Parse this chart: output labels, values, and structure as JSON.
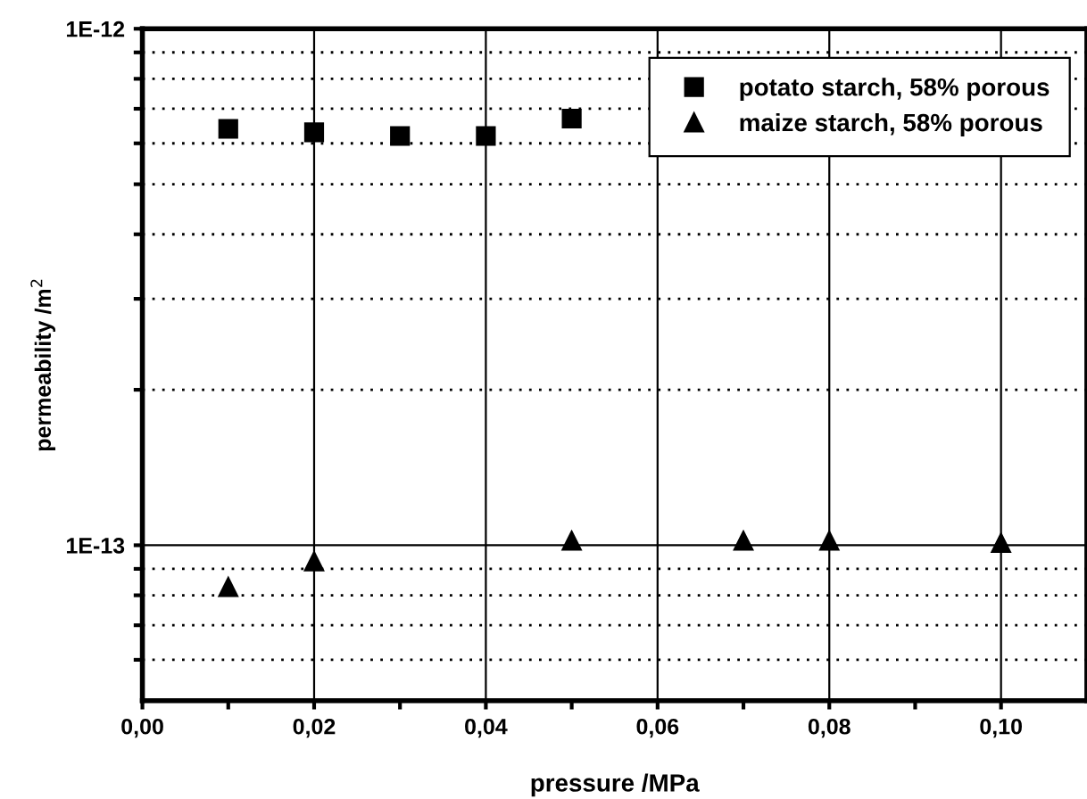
{
  "chart_data": {
    "type": "scatter",
    "xlabel": "pressure /MPa",
    "ylabel": "permeability /m$^{2}$",
    "log": "y",
    "xlim": [
      0,
      0.11
    ],
    "xticks": [
      {
        "value": 0,
        "label": "0,00"
      },
      {
        "value": 0.01,
        "label": null
      },
      {
        "value": 0.02,
        "label": "0,02"
      },
      {
        "value": 0.03,
        "label": null
      },
      {
        "value": 0.04,
        "label": "0,04"
      },
      {
        "value": 0.05,
        "label": null
      },
      {
        "value": 0.06,
        "label": "0,06"
      },
      {
        "value": 0.07,
        "label": null
      },
      {
        "value": 0.08,
        "label": "0,08"
      },
      {
        "value": 0.09,
        "label": null
      },
      {
        "value": 0.1,
        "label": "0,10"
      }
    ],
    "ylim": [
      5e-14,
      1e-12
    ],
    "yticks": [
      {
        "value": 6e-14,
        "label": null
      },
      {
        "value": 7e-14,
        "label": null
      },
      {
        "value": 8e-14,
        "label": null
      },
      {
        "value": 9e-14,
        "label": null
      },
      {
        "value": 1e-13,
        "label": "1E-13"
      },
      {
        "value": 2e-13,
        "label": null
      },
      {
        "value": 3e-13,
        "label": null
      },
      {
        "value": 4e-13,
        "label": null
      },
      {
        "value": 5e-13,
        "label": null
      },
      {
        "value": 6e-13,
        "label": null
      },
      {
        "value": 7e-13,
        "label": null
      },
      {
        "value": 8e-13,
        "label": null
      },
      {
        "value": 9e-13,
        "label": null
      },
      {
        "value": 1e-12,
        "label": "1E-12"
      }
    ],
    "grid": true,
    "legend": "top right",
    "series": [
      {
        "name": "potato starch, 58% porous",
        "color": "#000000",
        "marker": "square",
        "x": [
          0.01,
          0.02,
          0.03,
          0.04,
          0.05
        ],
        "values": [
          6.4e-13,
          6.3e-13,
          6.2e-13,
          6.2e-13,
          6.7e-13
        ]
      },
      {
        "name": "maize starch, 58% porous",
        "color": "#000000",
        "marker": "triangle",
        "x": [
          0.01,
          0.02,
          0.05,
          0.07,
          0.08,
          0.1
        ],
        "values": [
          8.3e-14,
          9.3e-14,
          1.02e-13,
          1.02e-13,
          1.02e-13,
          1.01e-13
        ]
      }
    ]
  }
}
